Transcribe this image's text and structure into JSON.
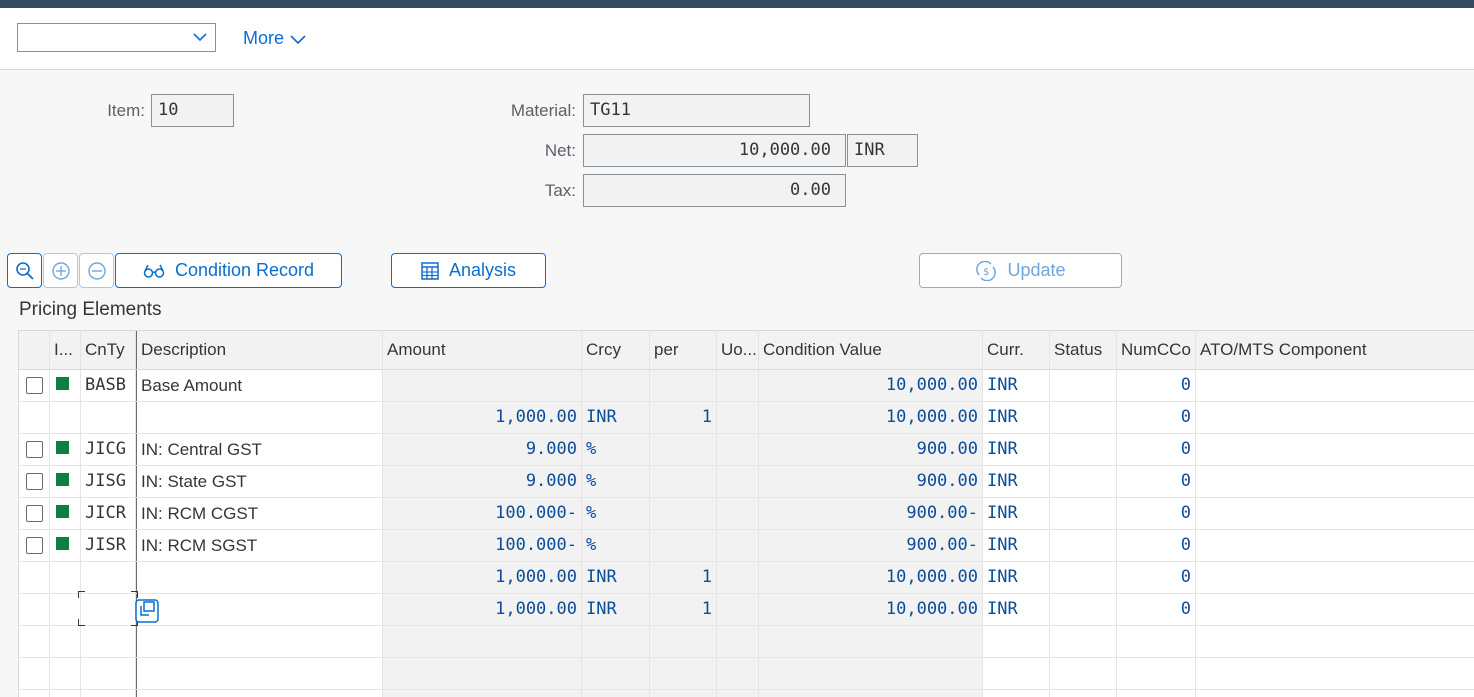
{
  "toolbar": {
    "dropdown_value": "",
    "more_label": "More"
  },
  "header_fields": {
    "item_label": "Item:",
    "item_value": "10",
    "material_label": "Material:",
    "material_value": "TG11",
    "net_label": "Net:",
    "net_value": "10,000.00",
    "net_currency": "INR",
    "tax_label": "Tax:",
    "tax_value": "0.00"
  },
  "buttons": {
    "condition_record": "Condition Record",
    "analysis": "Analysis",
    "update": "Update"
  },
  "icons": {
    "zoom": "magnify-icon",
    "expand": "plus-circle-icon",
    "collapse": "minus-circle-icon"
  },
  "section_title": "Pricing Elements",
  "table": {
    "columns": [
      "I...",
      "CnTy",
      "Description",
      "Amount",
      "Crcy",
      "per",
      "Uo...",
      "Condition Value",
      "Curr.",
      "Status",
      "NumCCo",
      "ATO/MTS Component"
    ],
    "rows": [
      {
        "chk": true,
        "st": true,
        "cnty": "BASB",
        "desc": "Base Amount",
        "amount": "",
        "crcy": "",
        "per": "",
        "cval": "10,000.00",
        "curr": "INR",
        "num": "0"
      },
      {
        "chk": false,
        "st": false,
        "cnty": "",
        "desc": "",
        "amount": "1,000.00",
        "crcy": "INR",
        "per": "1",
        "cval": "10,000.00",
        "curr": "INR",
        "num": "0"
      },
      {
        "chk": true,
        "st": true,
        "cnty": "JICG",
        "desc": "IN: Central GST",
        "amount": "9.000",
        "crcy": "%",
        "per": "",
        "cval": "900.00",
        "curr": "INR",
        "num": "0"
      },
      {
        "chk": true,
        "st": true,
        "cnty": "JISG",
        "desc": "IN: State GST",
        "amount": "9.000",
        "crcy": "%",
        "per": "",
        "cval": "900.00",
        "curr": "INR",
        "num": "0"
      },
      {
        "chk": true,
        "st": true,
        "cnty": "JICR",
        "desc": "IN: RCM CGST",
        "amount": "100.000-",
        "crcy": "%",
        "per": "",
        "cval": "900.00-",
        "curr": "INR",
        "num": "0"
      },
      {
        "chk": true,
        "st": true,
        "cnty": "JISR",
        "desc": "IN: RCM SGST",
        "amount": "100.000-",
        "crcy": "%",
        "per": "",
        "cval": "900.00-",
        "curr": "INR",
        "num": "0"
      },
      {
        "chk": false,
        "st": false,
        "cnty": "",
        "desc": "",
        "amount": "1,000.00",
        "crcy": "INR",
        "per": "1",
        "cval": "10,000.00",
        "curr": "INR",
        "num": "0"
      },
      {
        "chk": false,
        "st": false,
        "cnty": "",
        "desc": "",
        "amount": "1,000.00",
        "crcy": "INR",
        "per": "1",
        "cval": "10,000.00",
        "curr": "INR",
        "num": "0"
      },
      {
        "chk": false,
        "st": false,
        "cnty": "",
        "desc": "",
        "amount": "",
        "crcy": "",
        "per": "",
        "cval": "",
        "curr": "",
        "num": ""
      },
      {
        "chk": false,
        "st": false,
        "cnty": "",
        "desc": "",
        "amount": "",
        "crcy": "",
        "per": "",
        "cval": "",
        "curr": "",
        "num": ""
      },
      {
        "chk": false,
        "st": false,
        "cnty": "",
        "desc": "",
        "amount": "",
        "crcy": "",
        "per": "",
        "cval": "",
        "curr": "",
        "num": ""
      }
    ]
  },
  "colors": {
    "accent": "#0a6ed1",
    "status_green": "#107e3e",
    "shell": "#354a5f"
  }
}
